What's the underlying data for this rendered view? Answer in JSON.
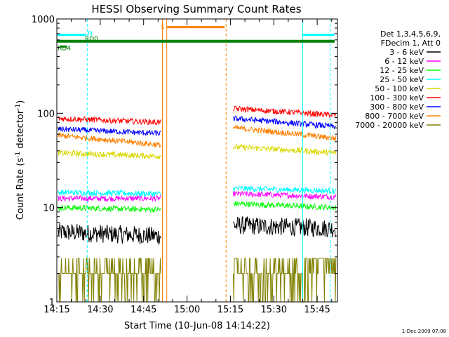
{
  "chart_data": {
    "type": "line",
    "title": "HESSI Observing Summary Count Rates",
    "xlabel": "Start Time (10-Jun-08 14:14:22)",
    "ylabel": "Count Rate (s",
    "ylabel_sup": "-1",
    "ylabel_mid": " detector",
    "ylabel_sup2": "-1",
    "ylabel_end": ")",
    "y_scale": "log",
    "ylim": [
      1,
      1000
    ],
    "xlim_minutes": [
      0,
      97
    ],
    "x_tick_minutes": [
      0,
      15,
      30,
      45,
      60,
      75,
      90
    ],
    "x_tick_labels": [
      "14:15",
      "14:30",
      "14:45",
      "15:00",
      "15:15",
      "15:30",
      "15:45"
    ],
    "y_tick_values": [
      1,
      10,
      100,
      1000
    ],
    "y_tick_labels": [
      "1",
      "10",
      "100",
      "1000"
    ],
    "footer": "1-Dec-2009 07:08",
    "legend_header": [
      "Det 1,3,4,5,6,9,",
      "FDecim 1, Att 0"
    ],
    "series": [
      {
        "name": "3 - 6 keV",
        "color": "#000000",
        "pre": [
          5.5,
          5.0
        ],
        "post": [
          6.5,
          6.0
        ]
      },
      {
        "name": "6 - 12 keV",
        "color": "#ff00ff",
        "pre": [
          12.5,
          12.5
        ],
        "post": [
          14.0,
          13.0
        ]
      },
      {
        "name": "12 - 25 keV",
        "color": "#00ff00",
        "pre": [
          10.0,
          9.5
        ],
        "post": [
          11.0,
          10.0
        ]
      },
      {
        "name": "25 - 50 keV",
        "color": "#00ffff",
        "pre": [
          14.5,
          14.0
        ],
        "post": [
          16.0,
          15.0
        ]
      },
      {
        "name": "50 - 100 keV",
        "color": "#d8d800",
        "pre": [
          38,
          35
        ],
        "post": [
          44,
          38
        ]
      },
      {
        "name": "100 - 300 keV",
        "color": "#ff0000",
        "pre": [
          88,
          80
        ],
        "post": [
          112,
          95
        ]
      },
      {
        "name": "300 - 800 keV",
        "color": "#0000ff",
        "pre": [
          68,
          61
        ],
        "post": [
          88,
          72
        ]
      },
      {
        "name": "800 - 7000 keV",
        "color": "#ff8000",
        "pre": [
          58,
          46
        ],
        "post": [
          70,
          54
        ]
      },
      {
        "name": "7000 - 20000 keV",
        "color": "#808000",
        "pre": [
          2.0,
          2.0
        ],
        "post": [
          2.0,
          2.5
        ]
      }
    ],
    "intervals": {
      "pre_start_min": 0.5,
      "pre_end_min": 36.0,
      "post_start_min": 61.0,
      "post_end_min": 96.5
    },
    "state_flags": [
      {
        "label": "N",
        "color": "#00ffff",
        "segments": [
          [
            0.0,
            10.0
          ],
          [
            85.0,
            96.0
          ]
        ],
        "level": 680
      },
      {
        "label": "S",
        "color": "#ff8000",
        "segments": [
          [
            38.0,
            58.0
          ]
        ],
        "level": 820
      },
      {
        "label": "RD0",
        "color": "#008000",
        "segments": [
          [
            0.0,
            96.0
          ]
        ],
        "level": 580
      },
      {
        "label": "RD4",
        "color": "#008000",
        "segments": [
          [
            1.0,
            3.5
          ]
        ],
        "level": 510
      }
    ],
    "vertical_markers": [
      {
        "minute": 0.0,
        "color": "#00ffff",
        "style": "solid"
      },
      {
        "minute": 10.5,
        "color": "#00ffff",
        "style": "dashed"
      },
      {
        "minute": 36.5,
        "color": "#ff8000",
        "style": "solid"
      },
      {
        "minute": 38.0,
        "color": "#ff8000",
        "style": "solid"
      },
      {
        "minute": 58.5,
        "color": "#ff8000",
        "style": "dashed"
      },
      {
        "minute": 85.0,
        "color": "#00ffff",
        "style": "solid"
      },
      {
        "minute": 94.5,
        "color": "#00ffff",
        "style": "dashed"
      }
    ]
  }
}
